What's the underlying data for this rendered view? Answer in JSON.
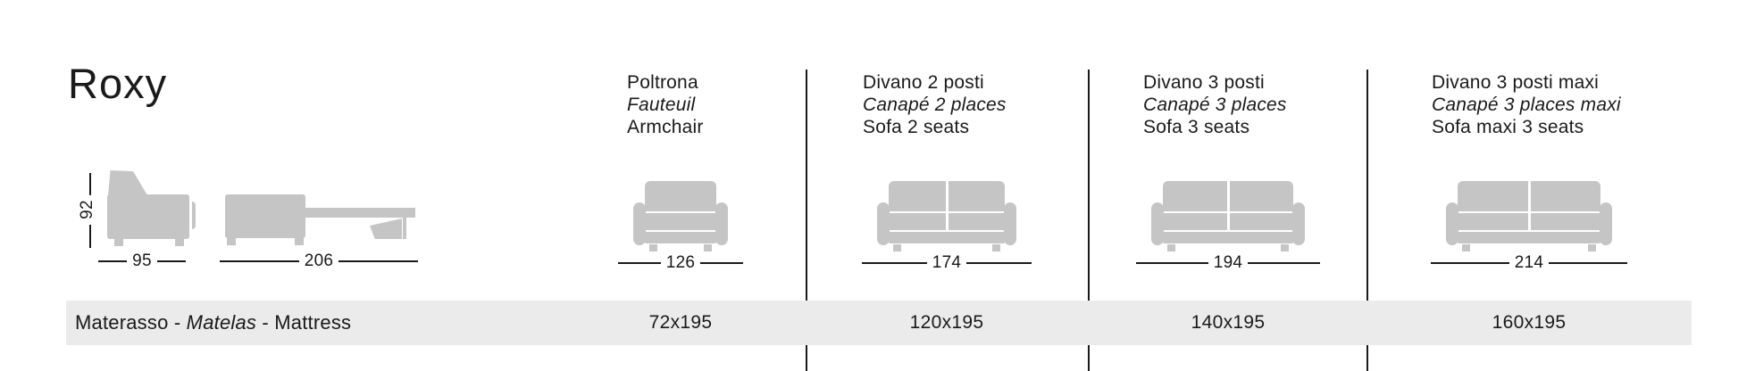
{
  "page": {
    "title": "Roxy"
  },
  "side_views": {
    "height_label": "92",
    "closed_width_label": "95",
    "open_width_label": "206"
  },
  "columns": [
    {
      "name_it": "Poltrona",
      "name_fr": "Fauteuil",
      "name_en": "Armchair",
      "width_label": "126",
      "mattress_size": "72x195"
    },
    {
      "name_it": "Divano 2 posti",
      "name_fr": "Canapé 2 places",
      "name_en": "Sofa 2 seats",
      "width_label": "174",
      "mattress_size": "120x195"
    },
    {
      "name_it": "Divano 3 posti",
      "name_fr": "Canapé 3 places",
      "name_en": "Sofa 3 seats",
      "width_label": "194",
      "mattress_size": "140x195"
    },
    {
      "name_it": "Divano 3 posti maxi",
      "name_fr": "Canapé 3 places maxi",
      "name_en": "Sofa maxi 3 seats",
      "width_label": "214",
      "mattress_size": "160x195"
    }
  ],
  "mattress_row": {
    "label_it": "Materasso",
    "separator": " - ",
    "label_fr": "Matelas",
    "label_en": "Mattress"
  },
  "icons": {
    "armchair_side": "armchair-side-view-icon",
    "sofa_bed_open_side": "sofa-bed-open-side-view-icon",
    "armchair_front": "armchair-front-icon",
    "sofa_front": "sofa-front-icon"
  },
  "colors": {
    "text": "#1a1a1a",
    "line": "#1a1a1a",
    "icon": "#c4c5c4",
    "band": "#ebebeb"
  }
}
